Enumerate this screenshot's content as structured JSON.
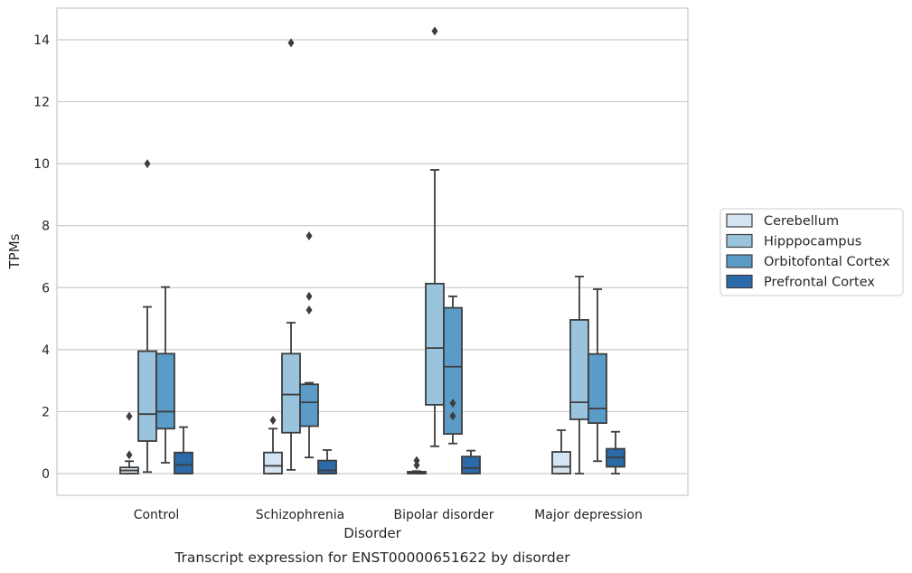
{
  "chart_data": {
    "type": "box",
    "caption": "Transcript expression for ENST00000651622 by disorder",
    "xlabel": "Disorder",
    "ylabel": "TPMs",
    "ylim": [
      -0.7,
      15
    ],
    "yticks": [
      0,
      2,
      4,
      6,
      8,
      10,
      12,
      14
    ],
    "grid": true,
    "legend_position": "right",
    "categories": [
      "Control",
      "Schizophrenia",
      "Bipolar disorder",
      "Major depression"
    ],
    "series": [
      {
        "name": "Cerebellum",
        "color": "#d5e4f2",
        "boxes": [
          {
            "whisker_low": 0,
            "q1": 0,
            "median": 0.1,
            "q3": 0.2,
            "whisker_high": 0.4,
            "outliers": [
              0.6,
              1.85
            ]
          },
          {
            "whisker_low": 0,
            "q1": 0,
            "median": 0.25,
            "q3": 0.68,
            "whisker_high": 1.45,
            "outliers": [
              1.72
            ]
          },
          {
            "whisker_low": 0,
            "q1": 0,
            "median": 0.02,
            "q3": 0.06,
            "whisker_high": 0.08,
            "outliers": [
              0.27,
              0.42
            ]
          },
          {
            "whisker_low": 0,
            "q1": 0,
            "median": 0.22,
            "q3": 0.7,
            "whisker_high": 1.4,
            "outliers": []
          }
        ]
      },
      {
        "name": "Hipppocampus",
        "color": "#9ac4dd",
        "boxes": [
          {
            "whisker_low": 0.05,
            "q1": 1.05,
            "median": 1.92,
            "q3": 3.95,
            "whisker_high": 5.38,
            "outliers": [
              10.0
            ]
          },
          {
            "whisker_low": 0.12,
            "q1": 1.32,
            "median": 2.55,
            "q3": 3.87,
            "whisker_high": 4.87,
            "outliers": [
              13.9
            ]
          },
          {
            "whisker_low": 0.88,
            "q1": 2.22,
            "median": 4.05,
            "q3": 6.13,
            "whisker_high": 9.8,
            "outliers": [
              14.28
            ]
          },
          {
            "whisker_low": 0,
            "q1": 1.75,
            "median": 2.3,
            "q3": 4.96,
            "whisker_high": 6.36,
            "outliers": []
          }
        ]
      },
      {
        "name": "Orbitofontal Cortex",
        "color": "#5a9bc8",
        "boxes": [
          {
            "whisker_low": 0.35,
            "q1": 1.45,
            "median": 2.0,
            "q3": 3.87,
            "whisker_high": 6.02,
            "outliers": []
          },
          {
            "whisker_low": 0.52,
            "q1": 1.53,
            "median": 2.3,
            "q3": 2.88,
            "whisker_high": 2.93,
            "outliers": [
              5.28,
              5.72,
              7.67
            ]
          },
          {
            "whisker_low": 0.97,
            "q1": 1.28,
            "median": 3.45,
            "q3": 5.35,
            "whisker_high": 5.72,
            "outliers": [
              1.86,
              2.27
            ]
          },
          {
            "whisker_low": 0.4,
            "q1": 1.63,
            "median": 2.1,
            "q3": 3.86,
            "whisker_high": 5.95,
            "outliers": []
          }
        ]
      },
      {
        "name": "Prefrontal Cortex",
        "color": "#2a6aa8",
        "boxes": [
          {
            "whisker_low": 0,
            "q1": 0,
            "median": 0.28,
            "q3": 0.68,
            "whisker_high": 1.5,
            "outliers": []
          },
          {
            "whisker_low": 0,
            "q1": 0,
            "median": 0.1,
            "q3": 0.42,
            "whisker_high": 0.76,
            "outliers": []
          },
          {
            "whisker_low": 0,
            "q1": 0,
            "median": 0.18,
            "q3": 0.55,
            "whisker_high": 0.74,
            "outliers": []
          },
          {
            "whisker_low": 0,
            "q1": 0.22,
            "median": 0.52,
            "q3": 0.8,
            "whisker_high": 1.35,
            "outliers": []
          }
        ]
      }
    ]
  }
}
